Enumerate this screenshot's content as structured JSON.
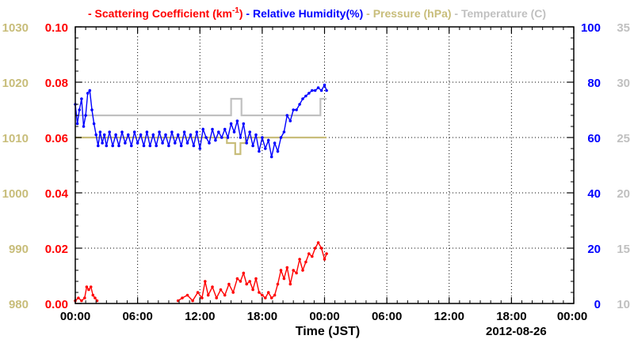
{
  "chart_data": {
    "type": "line",
    "legend": {
      "placement": "top",
      "entries": [
        {
          "marker": "-",
          "label": "Scattering Coefficient (km",
          "sup": "-1",
          "tail": ")",
          "color": "#ff0000"
        },
        {
          "marker": "-",
          "label": "Relative Humidity(%)",
          "color": "#0000ff"
        },
        {
          "marker": "-",
          "label": "Pressure (hPa)",
          "color": "#c8bd7a"
        },
        {
          "marker": "-",
          "label": "Temperature (C)",
          "color": "#c0c0c0"
        }
      ]
    },
    "xlabel": "Time (JST)",
    "date_label": "2012-08-26",
    "x_range_hours": [
      0,
      48
    ],
    "x_ticks": [
      {
        "h": 0,
        "label": "00:00"
      },
      {
        "h": 6,
        "label": "06:00"
      },
      {
        "h": 12,
        "label": "12:00"
      },
      {
        "h": 18,
        "label": "18:00"
      },
      {
        "h": 24,
        "label": "00:00"
      },
      {
        "h": 30,
        "label": "06:00"
      },
      {
        "h": 36,
        "label": "12:00"
      },
      {
        "h": 42,
        "label": "18:00"
      },
      {
        "h": 48,
        "label": "00:00"
      }
    ],
    "axes": {
      "pressure": {
        "color": "#c8bd7a",
        "range": [
          980,
          1030
        ],
        "ticks": [
          "980",
          "990",
          "1000",
          "1010",
          "1020",
          "1030"
        ]
      },
      "scattering": {
        "color": "#ff0000",
        "range": [
          0,
          0.1
        ],
        "ticks": [
          "0.00",
          "0.02",
          "0.04",
          "0.06",
          "0.08",
          "0.10"
        ]
      },
      "humidity": {
        "color": "#0000ff",
        "range": [
          0,
          100
        ],
        "ticks": [
          "0",
          "20",
          "40",
          "60",
          "80",
          "100"
        ]
      },
      "temperature": {
        "color": "#c0c0c0",
        "range": [
          10,
          35
        ],
        "ticks": [
          "10",
          "15",
          "20",
          "25",
          "30",
          "35"
        ]
      }
    },
    "grid": true,
    "series": [
      {
        "name": "Scattering Coefficient (km-1)",
        "axis": "scattering",
        "color": "#ff0000",
        "markers": true,
        "segments": [
          [
            [
              0,
              0.001
            ],
            [
              0.3,
              0.002
            ],
            [
              0.6,
              0.001
            ],
            [
              0.9,
              0.002
            ],
            [
              1.1,
              0.006
            ],
            [
              1.3,
              0.005
            ],
            [
              1.5,
              0.006
            ],
            [
              1.7,
              0.003
            ],
            [
              1.9,
              0.002
            ],
            [
              2.1,
              0.001
            ]
          ],
          [
            [
              9.9,
              0.001
            ],
            [
              10.3,
              0.002
            ],
            [
              10.8,
              0.003
            ],
            [
              11.3,
              0.001
            ],
            [
              11.8,
              0.004
            ],
            [
              12.2,
              0.002
            ],
            [
              12.5,
              0.008
            ],
            [
              12.8,
              0.003
            ],
            [
              13.2,
              0.006
            ],
            [
              13.6,
              0.002
            ],
            [
              14.0,
              0.005
            ],
            [
              14.4,
              0.003
            ],
            [
              14.8,
              0.007
            ],
            [
              15.2,
              0.004
            ],
            [
              15.6,
              0.009
            ],
            [
              15.9,
              0.008
            ],
            [
              16.2,
              0.011
            ],
            [
              16.5,
              0.007
            ],
            [
              16.8,
              0.008
            ],
            [
              17.1,
              0.005
            ],
            [
              17.4,
              0.009
            ],
            [
              17.7,
              0.004
            ],
            [
              18.0,
              0.003
            ],
            [
              18.3,
              0.002
            ],
            [
              18.6,
              0.004
            ],
            [
              18.9,
              0.002
            ],
            [
              19.2,
              0.003
            ],
            [
              19.5,
              0.007
            ],
            [
              19.8,
              0.012
            ],
            [
              20.1,
              0.009
            ],
            [
              20.4,
              0.013
            ],
            [
              20.7,
              0.007
            ],
            [
              21.0,
              0.012
            ],
            [
              21.3,
              0.011
            ],
            [
              21.6,
              0.016
            ],
            [
              21.9,
              0.012
            ],
            [
              22.2,
              0.015
            ],
            [
              22.5,
              0.018
            ],
            [
              22.8,
              0.017
            ],
            [
              23.1,
              0.02
            ],
            [
              23.4,
              0.022
            ],
            [
              23.7,
              0.02
            ],
            [
              24.0,
              0.016
            ],
            [
              24.2,
              0.018
            ]
          ]
        ]
      },
      {
        "name": "Relative Humidity(%)",
        "axis": "humidity",
        "color": "#0000ff",
        "markers": true,
        "segments": [
          [
            [
              0,
              72
            ],
            [
              0.2,
              65
            ],
            [
              0.4,
              70
            ],
            [
              0.6,
              74
            ],
            [
              0.8,
              64
            ],
            [
              1.0,
              68
            ],
            [
              1.2,
              76
            ],
            [
              1.4,
              77
            ],
            [
              1.6,
              70
            ],
            [
              1.8,
              65
            ],
            [
              2.0,
              61
            ],
            [
              2.2,
              57
            ],
            [
              2.4,
              62
            ],
            [
              2.6,
              58
            ],
            [
              2.8,
              61
            ],
            [
              3.0,
              57
            ],
            [
              3.3,
              62
            ],
            [
              3.6,
              57
            ],
            [
              3.9,
              61
            ],
            [
              4.2,
              57
            ],
            [
              4.5,
              62
            ],
            [
              4.8,
              58
            ],
            [
              5.1,
              61
            ],
            [
              5.4,
              57
            ],
            [
              5.7,
              62
            ],
            [
              6.0,
              58
            ],
            [
              6.3,
              61
            ],
            [
              6.6,
              57
            ],
            [
              6.9,
              62
            ],
            [
              7.2,
              57
            ],
            [
              7.5,
              61
            ],
            [
              7.8,
              57
            ],
            [
              8.1,
              62
            ],
            [
              8.4,
              58
            ],
            [
              8.7,
              61
            ],
            [
              9.0,
              57
            ],
            [
              9.3,
              62
            ],
            [
              9.6,
              58
            ],
            [
              9.9,
              61
            ],
            [
              10.2,
              57
            ],
            [
              10.5,
              62
            ],
            [
              10.8,
              58
            ],
            [
              11.1,
              61
            ],
            [
              11.4,
              57
            ],
            [
              11.7,
              62
            ],
            [
              12.0,
              56
            ],
            [
              12.3,
              63
            ],
            [
              12.6,
              60
            ],
            [
              12.9,
              58
            ],
            [
              13.2,
              63
            ],
            [
              13.5,
              59
            ],
            [
              13.8,
              62
            ],
            [
              14.1,
              60
            ],
            [
              14.4,
              63
            ],
            [
              14.7,
              60
            ],
            [
              15.0,
              65
            ],
            [
              15.3,
              62
            ],
            [
              15.6,
              66
            ],
            [
              15.9,
              60
            ],
            [
              16.2,
              65
            ],
            [
              16.5,
              58
            ],
            [
              16.8,
              62
            ],
            [
              17.1,
              57
            ],
            [
              17.4,
              61
            ],
            [
              17.7,
              55
            ],
            [
              18.0,
              60
            ],
            [
              18.3,
              56
            ],
            [
              18.6,
              59
            ],
            [
              18.9,
              53
            ],
            [
              19.2,
              58
            ],
            [
              19.5,
              55
            ],
            [
              19.8,
              60
            ],
            [
              20.1,
              62
            ],
            [
              20.4,
              68
            ],
            [
              20.7,
              66
            ],
            [
              21.0,
              70
            ],
            [
              21.3,
              70
            ],
            [
              21.6,
              72
            ],
            [
              21.9,
              74
            ],
            [
              22.2,
              75
            ],
            [
              22.5,
              76
            ],
            [
              22.8,
              77
            ],
            [
              23.1,
              77
            ],
            [
              23.4,
              78
            ],
            [
              23.7,
              77
            ],
            [
              24.0,
              79
            ],
            [
              24.2,
              77
            ]
          ]
        ]
      },
      {
        "name": "Pressure (hPa)",
        "axis": "pressure",
        "color": "#c8bd7a",
        "markers": false,
        "segments": [
          [
            [
              0,
              1010
            ],
            [
              14.6,
              1010
            ],
            [
              14.6,
              1009
            ],
            [
              15.4,
              1009
            ],
            [
              15.4,
              1007
            ],
            [
              15.9,
              1007
            ],
            [
              15.9,
              1009
            ],
            [
              16.4,
              1009
            ],
            [
              16.4,
              1010
            ],
            [
              24.2,
              1010
            ]
          ]
        ]
      },
      {
        "name": "Temperature (C)",
        "axis": "temperature",
        "color": "#c0c0c0",
        "markers": false,
        "segments": [
          [
            [
              0,
              27
            ],
            [
              15.0,
              27
            ],
            [
              15.0,
              28.5
            ],
            [
              16.0,
              28.5
            ],
            [
              16.0,
              27
            ],
            [
              23.6,
              27
            ],
            [
              23.6,
              28.5
            ],
            [
              24.2,
              28.5
            ]
          ]
        ]
      }
    ]
  }
}
